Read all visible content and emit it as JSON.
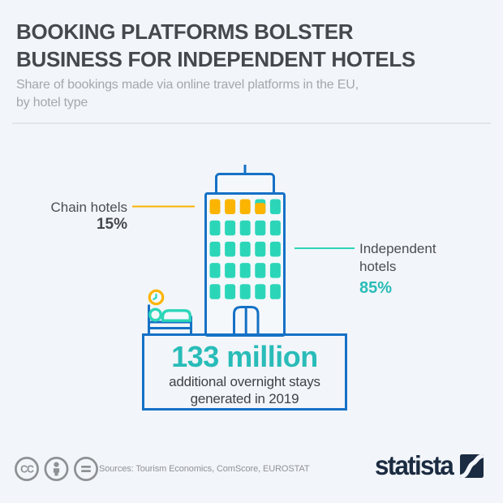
{
  "header": {
    "title": "BOOKING PLATFORMS BOLSTER\nBUSINESS FOR INDEPENDENT HOTELS",
    "subtitle": "Share of bookings made via online travel platforms in the EU,\nby hotel type"
  },
  "chart_data": {
    "type": "pictorial",
    "title": "Booking platforms bolster business for independent hotels",
    "subtitle": "Share of bookings made via online travel platforms in the EU, by hotel type",
    "categories": [
      "Chain hotels",
      "Independent hotels"
    ],
    "values": [
      15,
      85
    ],
    "unit": "%",
    "pictogram": "hotel building with 25 windows; share of windows colored orange = chain hotels share, teal = independent hotels share",
    "annotation": "133 million additional overnight stays generated in 2019",
    "legend_position": "none"
  },
  "labels": {
    "chain": {
      "name": "Chain hotels",
      "value": "15%"
    },
    "independent": {
      "name": "Independent hotels",
      "value": "85%"
    }
  },
  "callout": {
    "headline": "133 million",
    "line1": "additional overnight stays",
    "line2": "generated in 2019"
  },
  "footer": {
    "sources": "Sources: Tourism Economics, ComScore, EUROSTAT",
    "brand": "statista",
    "license_icons": [
      "cc-icon",
      "attribution-icon",
      "equals-icon"
    ]
  },
  "colors": {
    "background": "#F2F5F9",
    "outline_blue": "#1571C6",
    "accent_orange": "#FBB400",
    "accent_teal": "#2BD6B8",
    "teal_text": "#29BCB8",
    "title_text": "#45494D",
    "muted_text": "#A4A8AC",
    "brand_navy": "#1B2B41",
    "icon_gray": "#8E9194",
    "building_fill": "#F4F8FB"
  }
}
